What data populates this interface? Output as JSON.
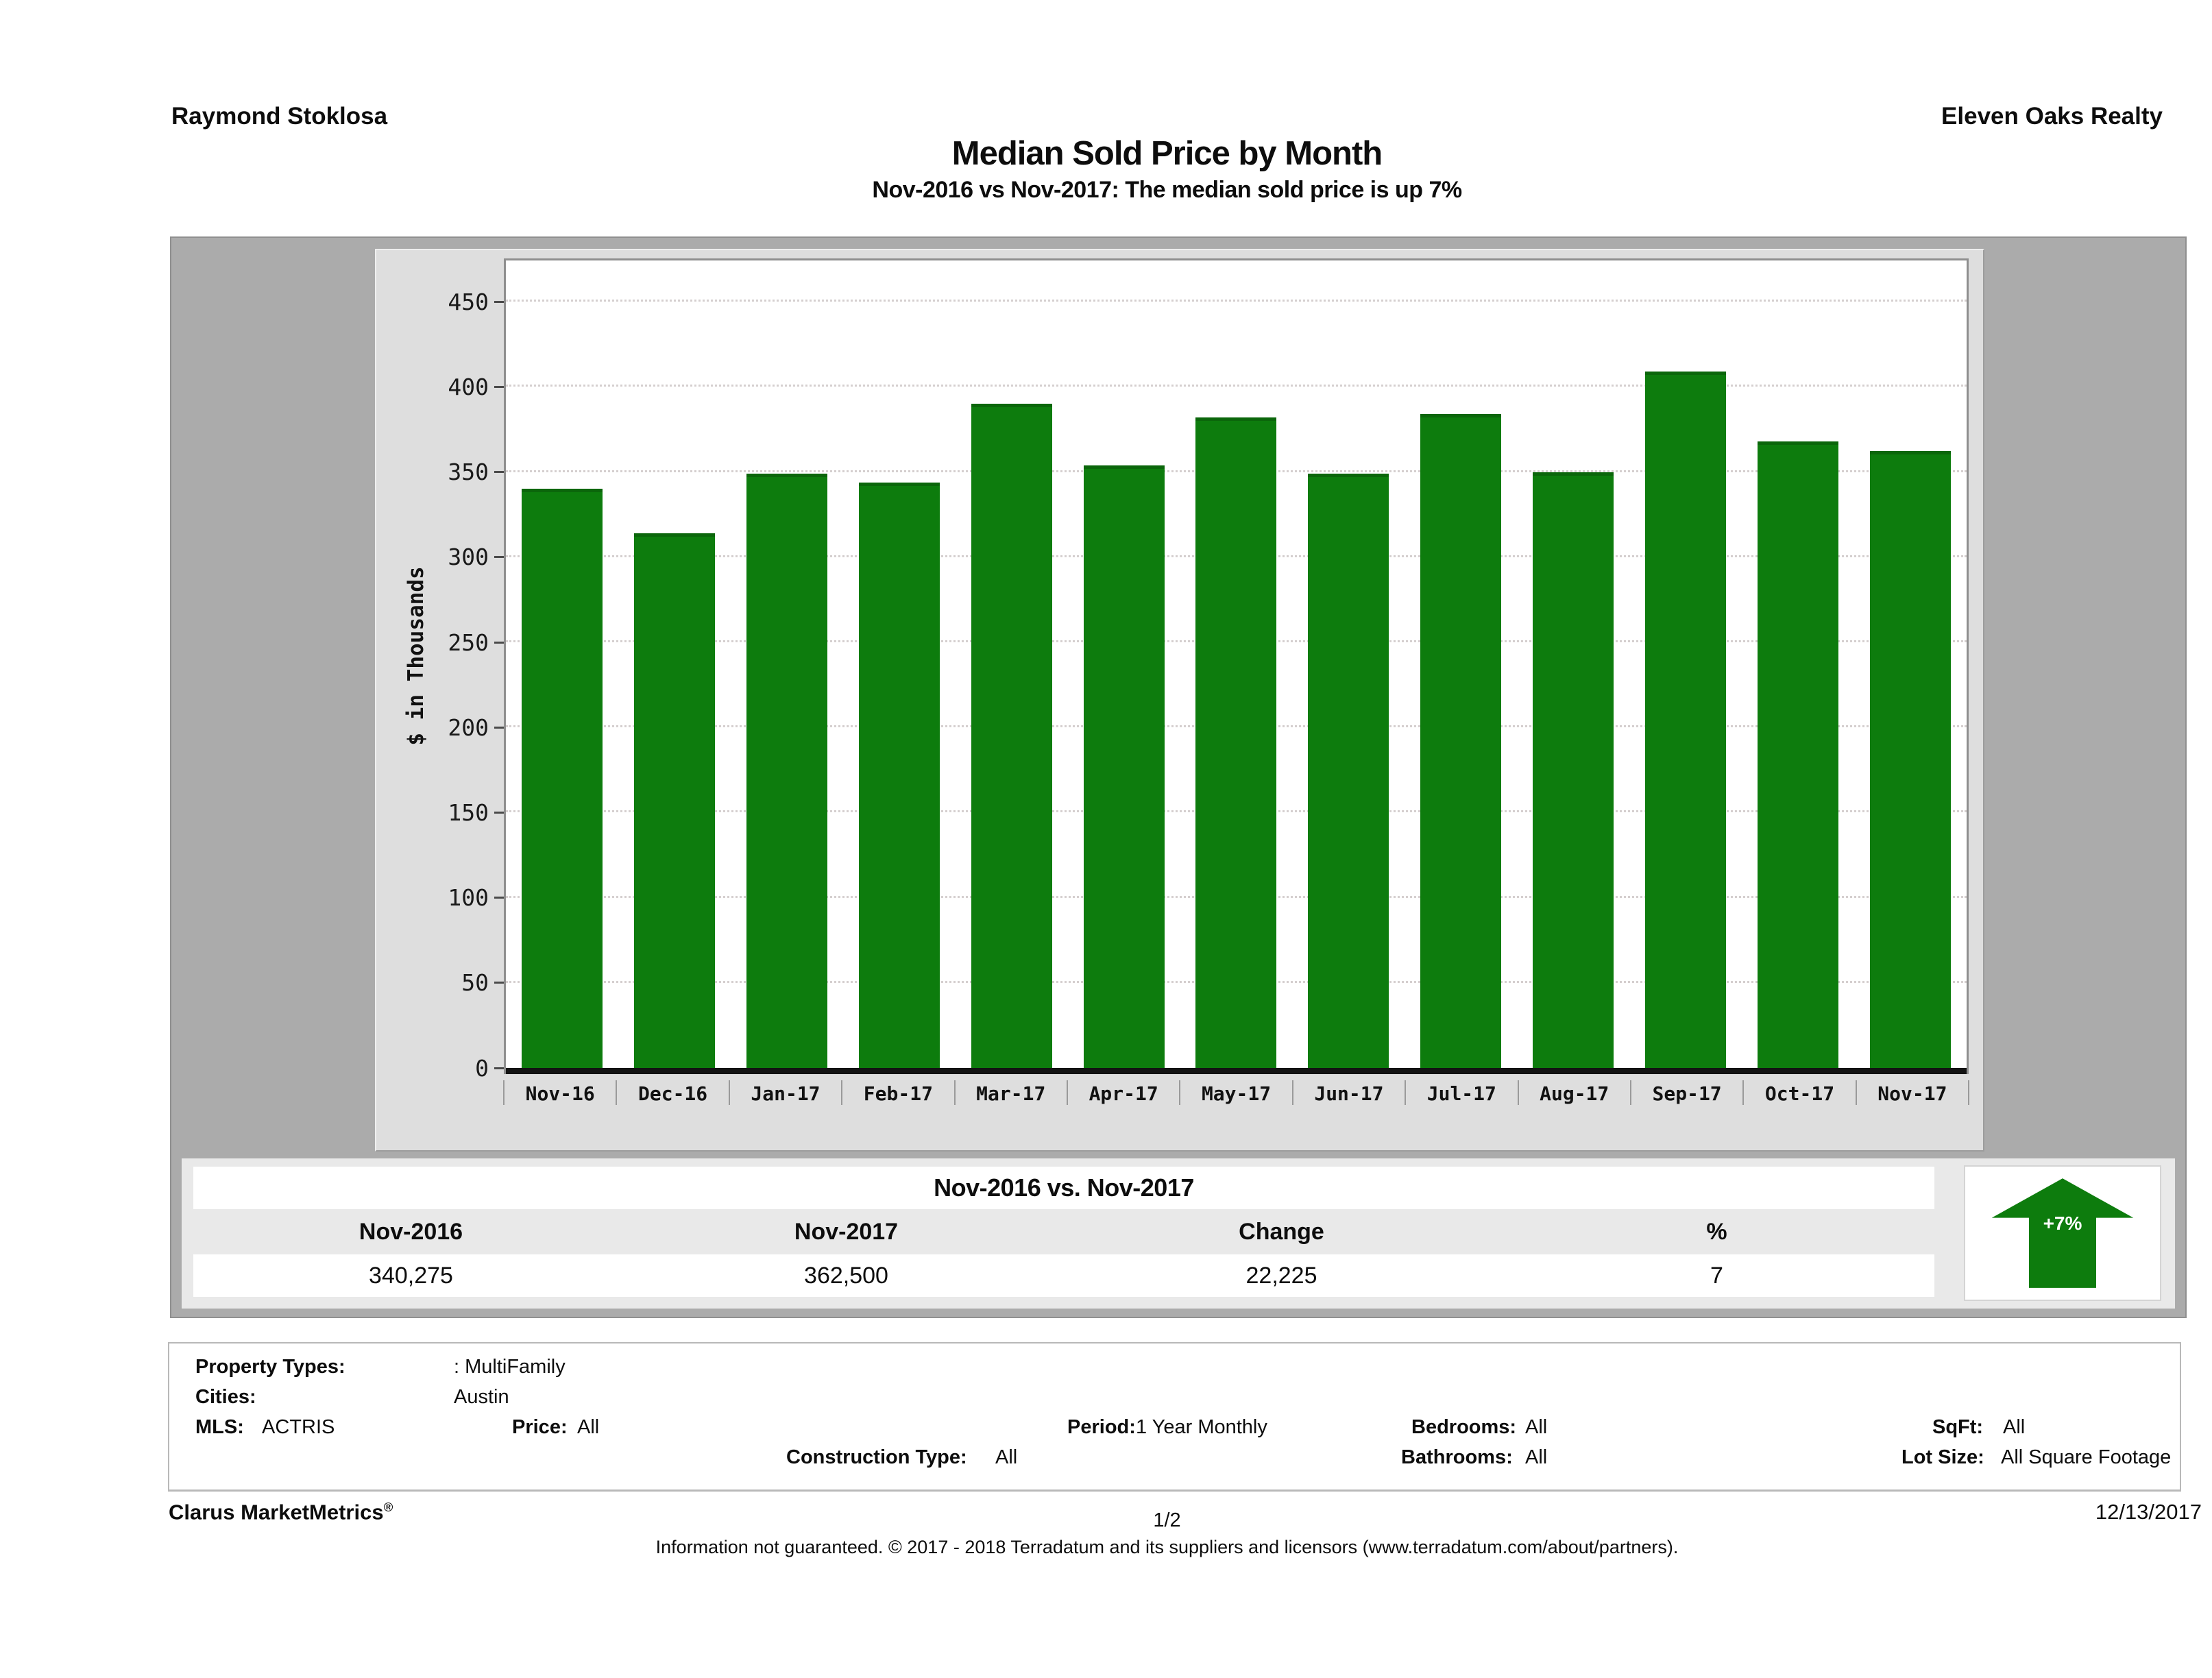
{
  "header": {
    "agent": "Raymond Stoklosa",
    "brokerage": "Eleven Oaks Realty",
    "title": "Median Sold Price by Month",
    "subtitle": "Nov-2016 vs Nov-2017: The median sold price is up 7%"
  },
  "chart_data": {
    "type": "bar",
    "title": "Median Sold Price by Month",
    "categories": [
      "Nov-16",
      "Dec-16",
      "Jan-17",
      "Feb-17",
      "Mar-17",
      "Apr-17",
      "May-17",
      "Jun-17",
      "Jul-17",
      "Aug-17",
      "Sep-17",
      "Oct-17",
      "Nov-17"
    ],
    "values": [
      340.275,
      314,
      349,
      344,
      390,
      354,
      382,
      349,
      384,
      350,
      409,
      368,
      362.5
    ],
    "xlabel": "",
    "ylabel": "$ in Thousands",
    "yticks": [
      0,
      50,
      100,
      150,
      200,
      250,
      300,
      350,
      400,
      450
    ],
    "ylim": [
      0,
      478
    ],
    "grid": "horizontal-dotted",
    "legend": "none",
    "bar_color": "#0d7c0d"
  },
  "comparison_table": {
    "title": "Nov-2016 vs. Nov-2017",
    "columns": [
      "Nov-2016",
      "Nov-2017",
      "Change",
      "%"
    ],
    "values": [
      "340,275",
      "362,500",
      "22,225",
      "7"
    ],
    "badge": "+7%",
    "badge_color": "#0d7c0d"
  },
  "filters": {
    "property_types_label": "Property Types:",
    "property_types": ": MultiFamily",
    "cities_label": "Cities:",
    "cities": "Austin",
    "mls_label": "MLS:",
    "mls": "ACTRIS",
    "price_label": "Price:",
    "price": "All",
    "period_label": "Period:",
    "period": "1 Year Monthly",
    "bedrooms_label": "Bedrooms:",
    "bedrooms": "All",
    "sqft_label": "SqFt:",
    "sqft": "All",
    "construction_label": "Construction Type:",
    "construction": "All",
    "bathrooms_label": "Bathrooms:",
    "bathrooms": "All",
    "lot_label": "Lot Size:",
    "lot": "All Square Footage"
  },
  "footer": {
    "product": "Clarus MarketMetrics",
    "registered_mark": "®",
    "page": "1/2",
    "date": "12/13/2017",
    "disclaimer": "Information not guaranteed. © 2017 - 2018 Terradatum and its suppliers and licensors (www.terradatum.com/about/partners)."
  }
}
